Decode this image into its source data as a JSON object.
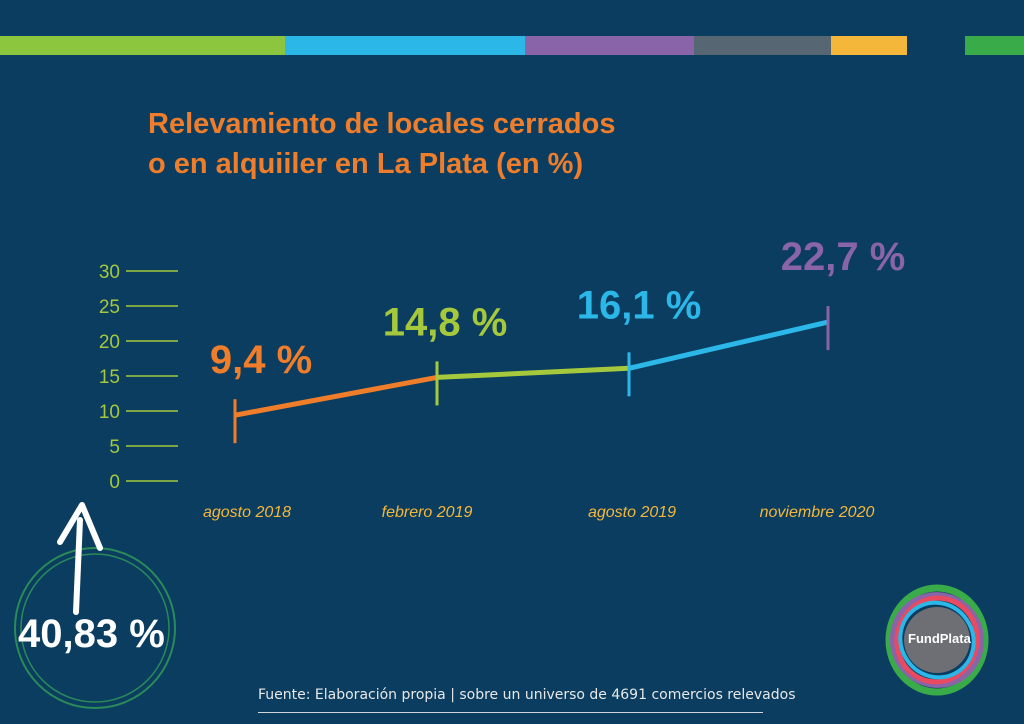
{
  "colors": {
    "background": "#0a3d5f",
    "title": "#f07d2a",
    "axis": "#a5c83c",
    "category_label": "#f5b73a",
    "stripes": [
      "#8cc63f",
      "#2bb7e8",
      "#8a64a8",
      "#566673",
      "#f5b73a",
      "#3aab49"
    ],
    "points": [
      "#f07d2a",
      "#a5c83c",
      "#2bb7e8",
      "#8a64a8"
    ]
  },
  "title_lines": [
    "Relevamiento de locales cerrados",
    "o en alquiiler en La Plata (en %)"
  ],
  "footer": "Fuente: Elaboración propia | sobre un universo de 4691 comercios relevados",
  "badge": {
    "value": "40,83 %",
    "icon": "up-arrow-icon"
  },
  "logo": {
    "text": "FundPlata"
  },
  "chart_data": {
    "type": "line",
    "title": "Relevamiento de locales cerrados o en alquiiler en La Plata (en %)",
    "xlabel": "",
    "ylabel": "",
    "categories": [
      "agosto 2018",
      "febrero 2019",
      "agosto 2019",
      "noviembre 2020"
    ],
    "values": [
      9.4,
      14.8,
      16.1,
      22.7
    ],
    "data_labels": [
      "9,4 %",
      "14,8 %",
      "16,1 %",
      "22,7 %"
    ],
    "yticks": [
      "0",
      "5",
      "10",
      "15",
      "20",
      "25",
      "30"
    ],
    "ylim": [
      0,
      30
    ],
    "grid": false,
    "legend": "none"
  }
}
